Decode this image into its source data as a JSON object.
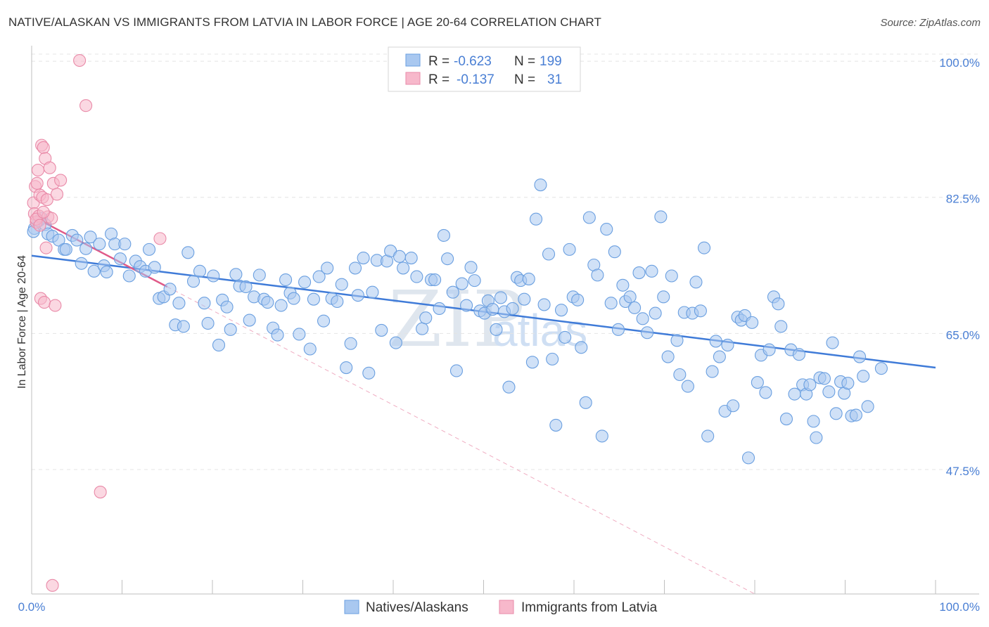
{
  "title": "NATIVE/ALASKAN VS IMMIGRANTS FROM LATVIA IN LABOR FORCE | AGE 20-64 CORRELATION CHART",
  "source": "Source: ZipAtlas.com",
  "watermark": {
    "zip": "ZIP",
    "atlas": "atlas"
  },
  "stats": [
    {
      "r_label": "R =",
      "r": "-0.623",
      "n_label": "N =",
      "n": "199",
      "color": "#a9c8f0"
    },
    {
      "r_label": "R =",
      "r": "-0.137",
      "n_label": "N =",
      "n": "31",
      "color": "#f7b8cb"
    }
  ],
  "chart_data": {
    "type": "scatter",
    "title": "NATIVE/ALASKAN VS IMMIGRANTS FROM LATVIA IN LABOR FORCE | AGE 20-64 CORRELATION CHART",
    "xlabel": "",
    "ylabel": "In Labor Force | Age 20-64",
    "xlim": [
      0,
      100
    ],
    "ylim": [
      31.5,
      102
    ],
    "x_tick_labels": [
      "0.0%",
      "100.0%"
    ],
    "y_ticks": [
      47.5,
      65.0,
      82.5,
      100.0
    ],
    "y_tick_labels": [
      "47.5%",
      "65.0%",
      "82.5%",
      "100.0%"
    ],
    "grid": true,
    "legend": "bottom-center",
    "series": [
      {
        "name": "Natives/Alaskans",
        "color": "#6a9fe0",
        "fill": "#a9c8f0",
        "trend": {
          "x0": 0,
          "y0": 75.0,
          "x1": 100,
          "y1": 60.6
        },
        "points": [
          [
            0.3,
            78.5
          ],
          [
            0.8,
            79.5
          ],
          [
            1.1,
            79.8
          ],
          [
            1.5,
            79.0
          ],
          [
            1.8,
            77.8
          ],
          [
            2.3,
            77.5
          ],
          [
            3.0,
            77.0
          ],
          [
            3.6,
            75.8
          ],
          [
            3.8,
            75.8
          ],
          [
            4.5,
            77.6
          ],
          [
            5.0,
            77.0
          ],
          [
            5.5,
            74.0
          ],
          [
            6.0,
            75.9
          ],
          [
            6.5,
            77.4
          ],
          [
            6.9,
            73.0
          ],
          [
            7.5,
            76.5
          ],
          [
            8.0,
            73.7
          ],
          [
            8.3,
            72.9
          ],
          [
            8.8,
            77.8
          ],
          [
            9.2,
            76.5
          ],
          [
            9.8,
            74.6
          ],
          [
            10.3,
            76.5
          ],
          [
            10.8,
            72.4
          ],
          [
            11.5,
            74.3
          ],
          [
            12.0,
            73.6
          ],
          [
            12.6,
            73.0
          ],
          [
            13.0,
            75.8
          ],
          [
            13.6,
            73.5
          ],
          [
            14.1,
            69.5
          ],
          [
            14.6,
            69.7
          ],
          [
            15.3,
            70.7
          ],
          [
            15.9,
            66.1
          ],
          [
            16.3,
            68.9
          ],
          [
            16.8,
            65.9
          ],
          [
            17.3,
            75.4
          ],
          [
            17.9,
            71.7
          ],
          [
            18.6,
            73.0
          ],
          [
            19.1,
            68.9
          ],
          [
            19.5,
            66.3
          ],
          [
            20.1,
            72.4
          ],
          [
            20.7,
            63.5
          ],
          [
            21.1,
            69.3
          ],
          [
            21.6,
            68.4
          ],
          [
            22.0,
            65.5
          ],
          [
            22.6,
            72.6
          ],
          [
            23.0,
            71.1
          ],
          [
            23.7,
            71.0
          ],
          [
            24.1,
            66.7
          ],
          [
            24.6,
            69.7
          ],
          [
            25.2,
            72.5
          ],
          [
            25.7,
            69.4
          ],
          [
            26.1,
            69.0
          ],
          [
            26.7,
            65.7
          ],
          [
            27.2,
            64.8
          ],
          [
            27.6,
            68.6
          ],
          [
            28.1,
            71.9
          ],
          [
            28.6,
            70.2
          ],
          [
            29.0,
            69.5
          ],
          [
            29.6,
            64.9
          ],
          [
            30.2,
            71.6
          ],
          [
            30.8,
            63.0
          ],
          [
            31.2,
            69.4
          ],
          [
            31.8,
            72.3
          ],
          [
            32.3,
            66.6
          ],
          [
            32.7,
            73.4
          ],
          [
            33.2,
            69.5
          ],
          [
            33.8,
            69.1
          ],
          [
            34.3,
            71.3
          ],
          [
            34.8,
            60.6
          ],
          [
            35.3,
            63.7
          ],
          [
            35.8,
            73.4
          ],
          [
            36.1,
            69.9
          ],
          [
            36.7,
            74.7
          ],
          [
            37.3,
            59.9
          ],
          [
            37.7,
            70.3
          ],
          [
            38.2,
            74.4
          ],
          [
            38.7,
            65.4
          ],
          [
            39.3,
            74.3
          ],
          [
            39.7,
            75.6
          ],
          [
            40.3,
            63.8
          ],
          [
            40.7,
            74.9
          ],
          [
            41.1,
            73.4
          ],
          [
            42.0,
            74.7
          ],
          [
            42.6,
            72.3
          ],
          [
            43.2,
            65.6
          ],
          [
            43.6,
            67.0
          ],
          [
            44.2,
            71.9
          ],
          [
            44.6,
            71.9
          ],
          [
            45.1,
            68.2
          ],
          [
            45.6,
            77.6
          ],
          [
            46.0,
            74.6
          ],
          [
            46.6,
            70.3
          ],
          [
            47.0,
            60.2
          ],
          [
            47.6,
            71.4
          ],
          [
            48.1,
            68.6
          ],
          [
            48.6,
            73.5
          ],
          [
            49.0,
            71.8
          ],
          [
            49.6,
            67.9
          ],
          [
            50.1,
            67.6
          ],
          [
            50.5,
            69.2
          ],
          [
            51.0,
            68.1
          ],
          [
            51.4,
            65.5
          ],
          [
            51.9,
            69.6
          ],
          [
            52.3,
            67.8
          ],
          [
            52.8,
            58.1
          ],
          [
            53.2,
            68.2
          ],
          [
            53.7,
            72.2
          ],
          [
            54.1,
            71.8
          ],
          [
            54.5,
            69.4
          ],
          [
            55.0,
            72.0
          ],
          [
            55.4,
            61.3
          ],
          [
            55.8,
            79.7
          ],
          [
            56.3,
            84.1
          ],
          [
            56.7,
            68.7
          ],
          [
            57.2,
            75.2
          ],
          [
            57.6,
            61.7
          ],
          [
            58.0,
            53.2
          ],
          [
            58.6,
            68.0
          ],
          [
            59.0,
            64.5
          ],
          [
            59.5,
            75.8
          ],
          [
            59.9,
            69.7
          ],
          [
            60.4,
            69.3
          ],
          [
            60.8,
            63.2
          ],
          [
            61.3,
            56.1
          ],
          [
            61.7,
            79.9
          ],
          [
            62.2,
            73.8
          ],
          [
            62.6,
            72.5
          ],
          [
            63.1,
            51.8
          ],
          [
            63.6,
            78.4
          ],
          [
            64.1,
            68.9
          ],
          [
            64.5,
            75.5
          ],
          [
            64.9,
            65.5
          ],
          [
            65.4,
            71.2
          ],
          [
            65.7,
            69.1
          ],
          [
            66.2,
            69.7
          ],
          [
            66.7,
            68.3
          ],
          [
            67.2,
            72.8
          ],
          [
            67.6,
            66.9
          ],
          [
            68.1,
            65.1
          ],
          [
            68.6,
            73.0
          ],
          [
            69.0,
            67.6
          ],
          [
            69.6,
            80.0
          ],
          [
            69.9,
            69.7
          ],
          [
            70.4,
            62.0
          ],
          [
            70.8,
            72.4
          ],
          [
            71.4,
            64.1
          ],
          [
            71.7,
            59.7
          ],
          [
            72.2,
            67.7
          ],
          [
            72.6,
            58.2
          ],
          [
            73.1,
            67.6
          ],
          [
            73.5,
            71.6
          ],
          [
            74.0,
            67.9
          ],
          [
            74.4,
            76.0
          ],
          [
            74.8,
            51.8
          ],
          [
            75.3,
            60.1
          ],
          [
            75.7,
            64.0
          ],
          [
            76.1,
            62.0
          ],
          [
            76.7,
            55.0
          ],
          [
            77.0,
            63.5
          ],
          [
            77.6,
            55.7
          ],
          [
            78.1,
            67.1
          ],
          [
            78.5,
            66.7
          ],
          [
            78.9,
            67.3
          ],
          [
            79.3,
            49.0
          ],
          [
            79.7,
            66.4
          ],
          [
            80.3,
            58.7
          ],
          [
            80.7,
            62.2
          ],
          [
            81.2,
            57.4
          ],
          [
            81.6,
            62.9
          ],
          [
            82.1,
            69.7
          ],
          [
            82.6,
            68.8
          ],
          [
            82.9,
            65.9
          ],
          [
            83.5,
            54.0
          ],
          [
            84.0,
            62.9
          ],
          [
            84.4,
            57.2
          ],
          [
            84.9,
            62.3
          ],
          [
            85.3,
            58.4
          ],
          [
            85.7,
            57.2
          ],
          [
            86.1,
            58.4
          ],
          [
            86.5,
            53.7
          ],
          [
            86.8,
            51.6
          ],
          [
            87.2,
            59.3
          ],
          [
            87.7,
            59.2
          ],
          [
            88.2,
            57.5
          ],
          [
            88.6,
            63.8
          ],
          [
            89.0,
            54.7
          ],
          [
            89.5,
            58.8
          ],
          [
            89.9,
            57.3
          ],
          [
            90.3,
            58.6
          ],
          [
            90.7,
            54.4
          ],
          [
            91.2,
            54.5
          ],
          [
            91.6,
            62.0
          ],
          [
            92.0,
            59.5
          ],
          [
            92.5,
            55.6
          ],
          [
            94.0,
            60.5
          ],
          [
            0.2,
            78.1
          ]
        ]
      },
      {
        "name": "Immigrants from Latvia",
        "color": "#e98aa8",
        "fill": "#f7b8cb",
        "trend": {
          "x0": 0,
          "y0": 80.1,
          "x1": 15,
          "y1": 71.0
        },
        "trend_ext": {
          "x0": 15,
          "y0": 71.0,
          "x1": 80,
          "y1": 31.5
        },
        "points": [
          [
            0.2,
            81.8
          ],
          [
            0.3,
            80.4
          ],
          [
            0.4,
            83.9
          ],
          [
            0.5,
            79.3
          ],
          [
            0.6,
            84.3
          ],
          [
            0.7,
            86.0
          ],
          [
            0.8,
            80.1
          ],
          [
            0.9,
            82.8
          ],
          [
            1.0,
            69.5
          ],
          [
            1.1,
            89.2
          ],
          [
            1.2,
            82.5
          ],
          [
            1.3,
            88.9
          ],
          [
            1.4,
            69.0
          ],
          [
            1.5,
            87.5
          ],
          [
            1.6,
            76.0
          ],
          [
            1.7,
            82.2
          ],
          [
            1.8,
            80.0
          ],
          [
            2.0,
            86.3
          ],
          [
            2.2,
            79.8
          ],
          [
            2.4,
            84.3
          ],
          [
            2.6,
            68.6
          ],
          [
            2.8,
            82.9
          ],
          [
            3.2,
            84.7
          ],
          [
            5.3,
            100.1
          ],
          [
            6.0,
            94.3
          ],
          [
            7.6,
            44.6
          ],
          [
            14.2,
            77.2
          ],
          [
            2.3,
            32.6
          ],
          [
            0.5,
            79.7
          ],
          [
            0.9,
            78.9
          ],
          [
            1.3,
            80.6
          ]
        ]
      }
    ]
  }
}
